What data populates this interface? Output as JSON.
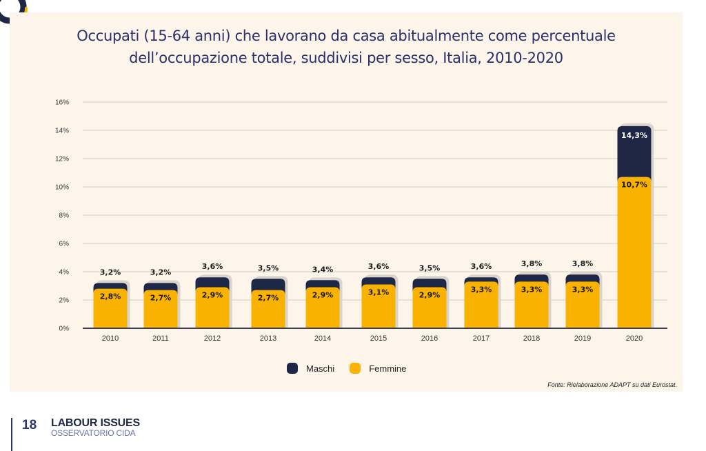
{
  "chart_data": {
    "type": "bar",
    "mode": "overlapped",
    "title": "Occupati (15-64 anni) che lavorano da casa abitualmente come percentuale dell’occupazione totale, suddivisi per sesso, Italia, 2010-2020",
    "title_lines": [
      "Occupati (15-64 anni) che lavorano da casa abitualmente come percentuale",
      "dell’occupazione totale, suddivisi per sesso, Italia, 2010-2020"
    ],
    "xlabel": "",
    "ylabel": "",
    "ylim": [
      0,
      16
    ],
    "yticks": [
      0,
      2,
      4,
      6,
      8,
      10,
      12,
      14,
      16
    ],
    "ytick_labels": [
      "0%",
      "2%",
      "4%",
      "6%",
      "8%",
      "10%",
      "12%",
      "14%",
      "16%"
    ],
    "grid": true,
    "categories": [
      "2010",
      "2011",
      "2012",
      "2013",
      "2014",
      "2015",
      "2016",
      "2017",
      "2018",
      "2019",
      "2020"
    ],
    "series": [
      {
        "name": "Maschi",
        "color": "#1f2747",
        "values": [
          3.2,
          3.2,
          3.6,
          3.5,
          3.4,
          3.6,
          3.5,
          3.6,
          3.8,
          3.8,
          14.3
        ],
        "labels": [
          "3,2%",
          "3,2%",
          "3,6%",
          "3,5%",
          "3,4%",
          "3,6%",
          "3,5%",
          "3,6%",
          "3,8%",
          "3,8%",
          "14,3%"
        ]
      },
      {
        "name": "Femmine",
        "color": "#f9b200",
        "values": [
          2.8,
          2.7,
          2.9,
          2.7,
          2.9,
          3.1,
          2.9,
          3.3,
          3.3,
          3.3,
          10.7
        ],
        "labels": [
          "2,8%",
          "2,7%",
          "2,9%",
          "2,7%",
          "2,9%",
          "3,1%",
          "2,9%",
          "3,3%",
          "3,3%",
          "3,3%",
          "10,7%"
        ]
      }
    ],
    "legend": {
      "placement": "bottom-center",
      "entries": [
        "Maschi",
        "Femmine"
      ]
    },
    "source": "Fonte: Rielaborazione ADAPT su dati Eurostat."
  },
  "footer": {
    "page_number": "18",
    "brand_title": "LABOUR ISSUES",
    "brand_subtitle": "OSSERVATORIO CIDA"
  },
  "colors": {
    "navy": "#1f2747",
    "yellow": "#f9b200",
    "panel_bg": "#fdf5ea",
    "title": "#2a2f6b"
  }
}
